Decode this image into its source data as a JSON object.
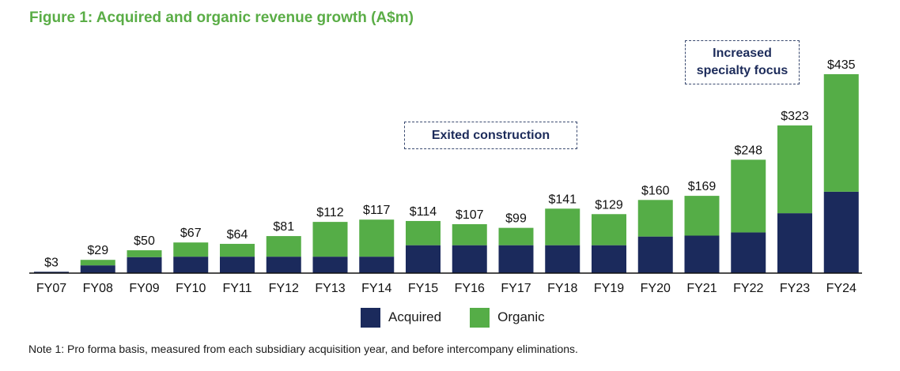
{
  "title": "Figure 1: Acquired and organic revenue growth (A$m)",
  "footnote": "Note 1: Pro forma basis, measured from each subsidiary acquisition year, and before intercompany eliminations.",
  "annotations": {
    "exited_construction": "Exited construction",
    "increased_specialty": "Increased\nspecialty focus"
  },
  "colors": {
    "acquired": "#1b2a5c",
    "organic": "#55ad47",
    "title": "#5aad46"
  },
  "chart_data": {
    "type": "bar",
    "stacked": true,
    "categories": [
      "FY07",
      "FY08",
      "FY09",
      "FY10",
      "FY11",
      "FY12",
      "FY13",
      "FY14",
      "FY15",
      "FY16",
      "FY17",
      "FY18",
      "FY19",
      "FY20",
      "FY21",
      "FY22",
      "FY23",
      "FY24"
    ],
    "series": [
      {
        "name": "Acquired",
        "values": [
          3,
          17,
          35,
          36,
          36,
          36,
          36,
          36,
          61,
          61,
          61,
          61,
          61,
          80,
          82,
          89,
          131,
          178
        ]
      },
      {
        "name": "Organic",
        "values": [
          0,
          12,
          15,
          31,
          28,
          45,
          76,
          81,
          53,
          46,
          38,
          80,
          68,
          80,
          87,
          159,
          192,
          257
        ]
      }
    ],
    "totals": [
      3,
      29,
      50,
      67,
      64,
      81,
      112,
      117,
      114,
      107,
      99,
      141,
      129,
      160,
      169,
      248,
      323,
      435
    ],
    "total_labels": [
      "$3",
      "$29",
      "$50",
      "$67",
      "$64",
      "$81",
      "$112",
      "$117",
      "$114",
      "$107",
      "$99",
      "$141",
      "$129",
      "$160",
      "$169",
      "$248",
      "$323",
      "$435"
    ],
    "ylim": [
      0,
      435
    ],
    "legend": "bottom-center",
    "grid": false
  }
}
